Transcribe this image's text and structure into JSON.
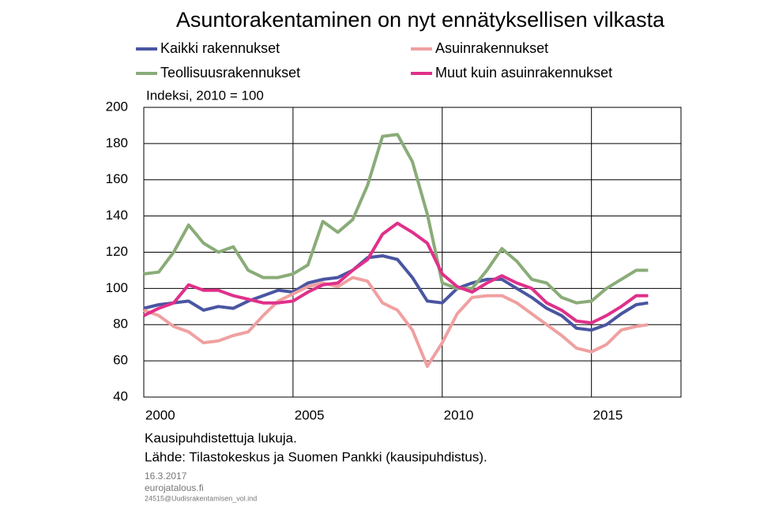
{
  "chart_data": {
    "type": "line",
    "title": "Asuntorakentaminen on nyt ennätyksellisen vilkasta",
    "y_label": "Indeksi, 2010 = 100",
    "x": [
      2000,
      2000.5,
      2001,
      2001.5,
      2002,
      2002.5,
      2003,
      2003.5,
      2004,
      2004.5,
      2005,
      2005.5,
      2006,
      2006.5,
      2007,
      2007.5,
      2008,
      2008.5,
      2009,
      2009.5,
      2010,
      2010.5,
      2011,
      2011.5,
      2012,
      2012.5,
      2013,
      2013.5,
      2014,
      2014.5,
      2015,
      2015.5,
      2016,
      2016.5,
      2016.9
    ],
    "series": [
      {
        "name": "Kaikki rakennukset",
        "color": "#4a55a2",
        "values": [
          89,
          91,
          92,
          93,
          88,
          90,
          89,
          93,
          96,
          99,
          98,
          103,
          105,
          106,
          110,
          117,
          118,
          116,
          106,
          93,
          92,
          100,
          103,
          105,
          105,
          100,
          95,
          89,
          85,
          78,
          77,
          80,
          86,
          91,
          92
        ]
      },
      {
        "name": "Asuinrakennukset",
        "color": "#f0a0a0",
        "values": [
          88,
          85,
          79,
          76,
          70,
          71,
          74,
          76,
          85,
          93,
          97,
          101,
          103,
          101,
          106,
          104,
          92,
          88,
          77,
          57,
          70,
          86,
          95,
          96,
          96,
          92,
          86,
          80,
          74,
          67,
          65,
          69,
          77,
          79,
          80
        ]
      },
      {
        "name": "Teollisuusrakennukset",
        "color": "#8aac78",
        "values": [
          108,
          109,
          120,
          135,
          125,
          120,
          123,
          110,
          106,
          106,
          108,
          113,
          137,
          131,
          138,
          157,
          184,
          185,
          170,
          141,
          103,
          100,
          100,
          110,
          122,
          115,
          105,
          103,
          95,
          92,
          93,
          100,
          105,
          110,
          110
        ]
      },
      {
        "name": "Muut kuin asuinrakennukset",
        "color": "#e0308a",
        "values": [
          85,
          89,
          92,
          102,
          99,
          99,
          96,
          94,
          92,
          92,
          93,
          98,
          102,
          103,
          110,
          116,
          130,
          136,
          131,
          125,
          108,
          101,
          98,
          103,
          107,
          103,
          100,
          92,
          88,
          82,
          81,
          85,
          90,
          96,
          96
        ]
      }
    ],
    "xlim": [
      2000,
      2018
    ],
    "xticks": [
      2000,
      2005,
      2010,
      2015
    ],
    "ylim": [
      40,
      200
    ],
    "yticks": [
      40,
      60,
      80,
      100,
      120,
      140,
      160,
      180,
      200
    ],
    "grid": true,
    "notes": [
      "Kausipuhdistettuja lukuja.",
      "Lähde: Tilastokeskus ja Suomen Pankki (kausipuhdistus)."
    ],
    "footer": [
      "16.3.2017",
      "eurojatalous.fi",
      "24515@Uudisrakentamisen_vol.ind"
    ]
  }
}
